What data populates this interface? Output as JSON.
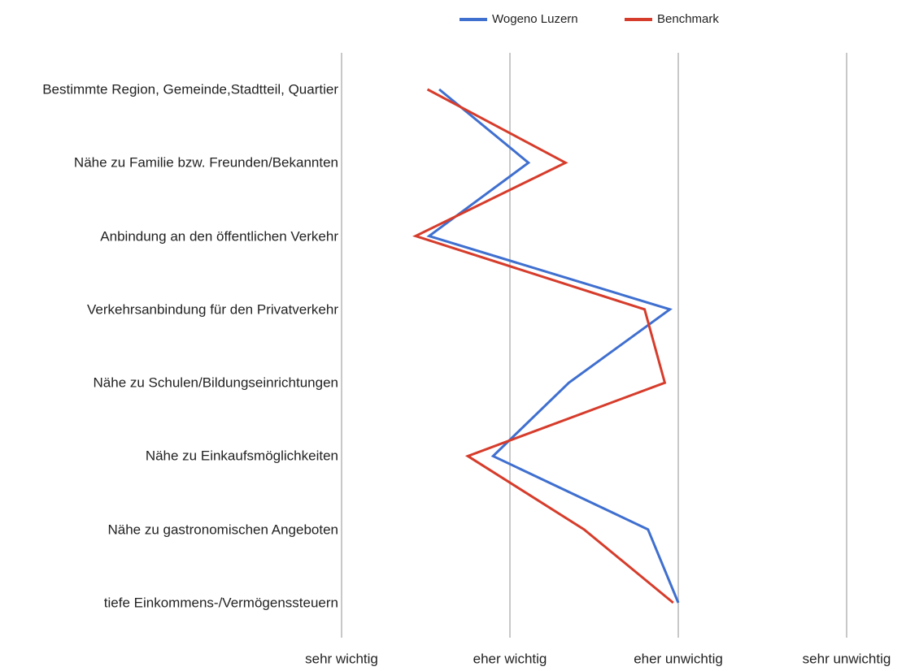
{
  "chart_data": {
    "type": "line",
    "categories": [
      "Bestimmte Region, Gemeinde,Stadtteil, Quartier",
      "Nähe zu Familie bzw. Freunden/Bekannten",
      "Anbindung an den öffentlichen Verkehr",
      "Verkehrsanbindung für den Privatverkehr",
      "Nähe zu Schulen/Bildungseinrichtungen",
      "Nähe zu Einkaufsmöglichkeiten",
      "Nähe zu gastronomischen Angeboten",
      "tiefe Einkommens-/Vermögenssteuern"
    ],
    "series": [
      {
        "name": "Wogeno Luzern",
        "color": "#3f6fcf",
        "values": [
          1.58,
          2.11,
          1.52,
          2.95,
          2.35,
          1.9,
          2.82,
          3.0
        ]
      },
      {
        "name": "Benchmark",
        "color": "#d63c2b",
        "values": [
          1.51,
          2.33,
          1.44,
          2.8,
          2.92,
          1.75,
          2.44,
          2.97
        ]
      }
    ],
    "xlim": [
      1,
      4
    ],
    "xticks": [
      {
        "value": 1,
        "label": "sehr wichtig"
      },
      {
        "value": 2,
        "label": "eher wichtig"
      },
      {
        "value": 3,
        "label": "eher unwichtig"
      },
      {
        "value": 4,
        "label": "sehr unwichtig"
      }
    ],
    "grid": true,
    "legend": "top"
  }
}
